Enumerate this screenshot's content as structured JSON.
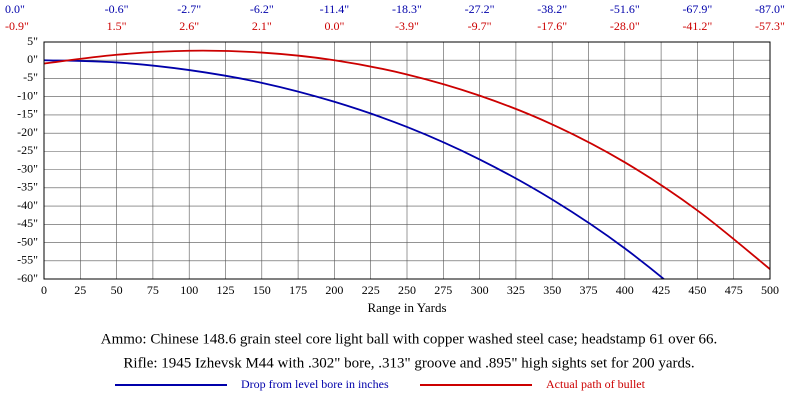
{
  "chart_data": {
    "type": "line",
    "x": [
      0,
      50,
      100,
      150,
      200,
      250,
      300,
      350,
      400,
      450,
      500
    ],
    "series": [
      {
        "name": "Drop from level bore in inches",
        "color": "#0000aa",
        "values": [
          0.0,
          -0.6,
          -2.7,
          -6.2,
          -11.4,
          -18.3,
          -27.2,
          -38.2,
          -51.6,
          -67.9,
          -87.0
        ],
        "value_labels": [
          "0.0\"",
          "-0.6\"",
          "-2.7\"",
          "-6.2\"",
          "-11.4\"",
          "-18.3\"",
          "-27.2\"",
          "-38.2\"",
          "-51.6\"",
          "-67.9\"",
          "-87.0\""
        ]
      },
      {
        "name": "Actual path of bullet",
        "color": "#cc0000",
        "values": [
          -0.9,
          1.5,
          2.6,
          2.1,
          0.0,
          -3.9,
          -9.7,
          -17.6,
          -28.0,
          -41.2,
          -57.3
        ],
        "value_labels": [
          "-0.9\"",
          "1.5\"",
          "2.6\"",
          "2.1\"",
          "0.0\"",
          "-3.9\"",
          "-9.7\"",
          "-17.6\"",
          "-28.0\"",
          "-41.2\"",
          "-57.3\""
        ]
      }
    ],
    "xlabel": "Range in Yards",
    "xlim": [
      0,
      500
    ],
    "xticks": [
      0,
      25,
      50,
      75,
      100,
      125,
      150,
      175,
      200,
      225,
      250,
      275,
      300,
      325,
      350,
      375,
      400,
      425,
      450,
      475,
      500
    ],
    "ylim": [
      -60,
      5
    ],
    "yticks": [
      {
        "value": 5,
        "label": "5\""
      },
      {
        "value": 0,
        "label": "0\""
      },
      {
        "value": -5,
        "label": "-5\""
      },
      {
        "value": -10,
        "label": "-10\""
      },
      {
        "value": -15,
        "label": "-15\""
      },
      {
        "value": -20,
        "label": "-20\""
      },
      {
        "value": -25,
        "label": "-25\""
      },
      {
        "value": -30,
        "label": "-30\""
      },
      {
        "value": -35,
        "label": "-35\""
      },
      {
        "value": -40,
        "label": "-40\""
      },
      {
        "value": -45,
        "label": "-45\""
      },
      {
        "value": -50,
        "label": "-50\""
      },
      {
        "value": -55,
        "label": "-55\""
      },
      {
        "value": -60,
        "label": "-60\""
      }
    ],
    "grid": true,
    "notes": [
      "Ammo:  Chinese 148.6 grain steel core light ball with copper washed steel case; headstamp 61 over 66.",
      "Rifle:  1945 Izhevsk M44 with .302\" bore, .313\" groove and .895\" high sights set for 200 yards."
    ]
  }
}
